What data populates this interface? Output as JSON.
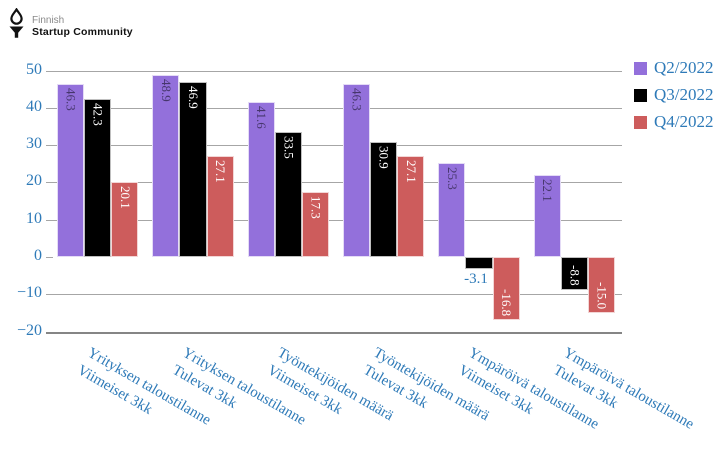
{
  "logo": {
    "top_line": "Finnish",
    "bottom_line": "Startup Community",
    "icon": "droplet-y-logo-icon"
  },
  "chart_data": {
    "type": "bar",
    "title": "",
    "categories": [
      {
        "line1": "Yrityksen taloustilanne",
        "line2": "Viimeiset 3kk"
      },
      {
        "line1": "Yrityksen taloustilanne",
        "line2": "Tulevat 3kk"
      },
      {
        "line1": "Työntekijöiden määrä",
        "line2": "Viimeiset 3kk"
      },
      {
        "line1": "Työntekijöiden määrä",
        "line2": "Tulevat 3kk"
      },
      {
        "line1": "Ympäröivä taloustilanne",
        "line2": "Viimeiset 3kk"
      },
      {
        "line1": "Ympäröivä taloustilanne",
        "line2": "Tulevat 3kk"
      }
    ],
    "series": [
      {
        "name": "Q2/2022",
        "color": "#9370DB",
        "label_color": "rgba(30,25,50,0.66)",
        "values": [
          46.3,
          48.9,
          41.6,
          46.3,
          25.3,
          22.1
        ]
      },
      {
        "name": "Q3/2022",
        "color": "#000000",
        "label_color": "#ffffff",
        "values": [
          42.3,
          46.9,
          33.5,
          30.9,
          -3.1,
          -8.8
        ]
      },
      {
        "name": "Q4/2022",
        "color": "#CD5C5C",
        "label_color": "#ffffff",
        "values": [
          20.1,
          27.1,
          17.3,
          27.1,
          -16.8,
          -15.0
        ]
      }
    ],
    "y_ticks": [
      {
        "value": 50,
        "label": "50",
        "grid": true
      },
      {
        "value": 40,
        "label": "40",
        "grid": true
      },
      {
        "value": 30,
        "label": "30",
        "grid": true
      },
      {
        "value": 20,
        "label": "20",
        "grid": true
      },
      {
        "value": 10,
        "label": "10",
        "grid": true
      },
      {
        "value": 0,
        "label": "0",
        "grid": false
      },
      {
        "value": -10,
        "label": "−10",
        "grid": true
      },
      {
        "value": -20,
        "label": "−20",
        "grid": true,
        "spine": true
      }
    ],
    "ylim": [
      -20,
      50
    ],
    "grid": true,
    "legend_position": "top-right",
    "axis_text_color": "#2e7ab8",
    "outside_label_color": "#2e7ab8"
  }
}
